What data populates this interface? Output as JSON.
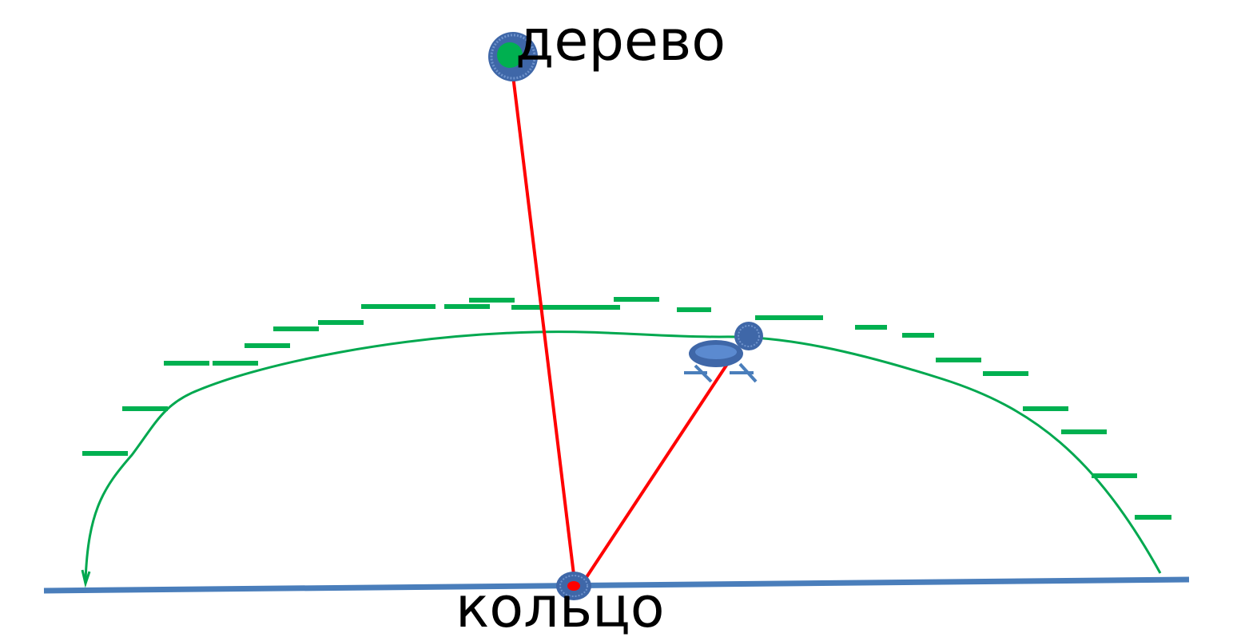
{
  "labels": {
    "tree": "дерево",
    "ring": "кольцо"
  },
  "colors": {
    "background": "#ffffff",
    "ground_line": "#4a7ebb",
    "path_curve": "#00a84f",
    "dashes": "#00b050",
    "sight_lines": "#ff0000",
    "tree_marker_fill": "#00b050",
    "tree_marker_ring": "#3f67a8",
    "ring_marker": "#3f67a8",
    "ring_center": "#ff0000",
    "animal_figure": "#4a7ebb"
  },
  "icons": {
    "tree": "tree-marker-icon",
    "ring": "ring-marker-icon",
    "animal": "animal-figure-icon"
  }
}
